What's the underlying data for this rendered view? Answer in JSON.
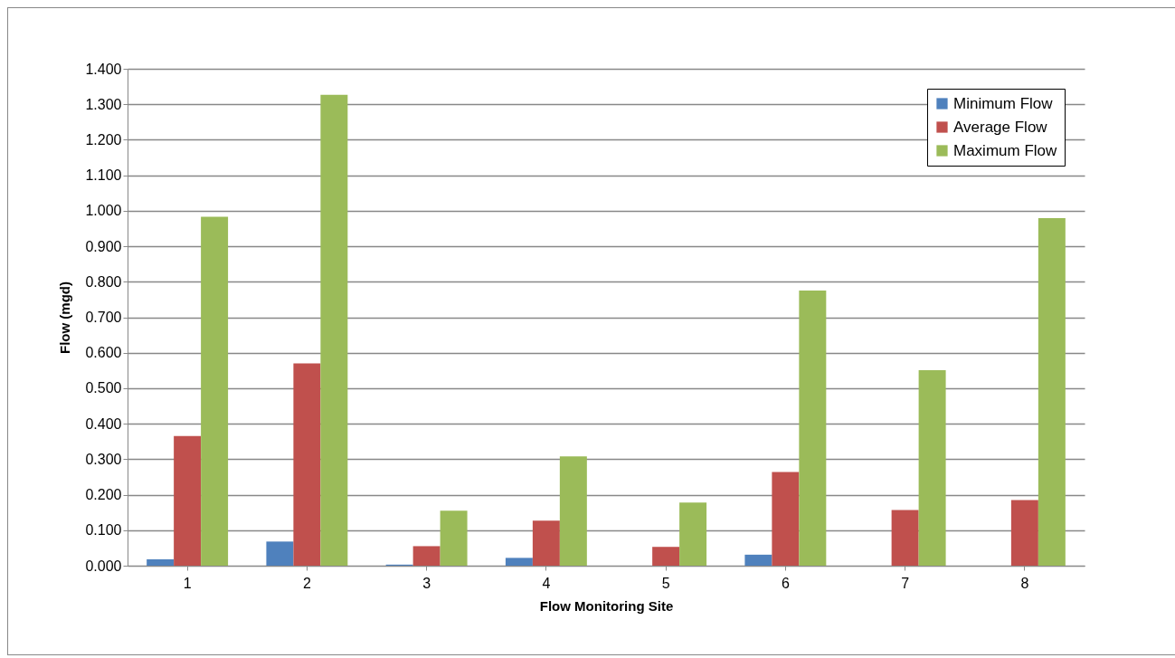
{
  "chart_data": {
    "type": "bar",
    "xlabel": "Flow Monitoring Site",
    "ylabel": "Flow (mgd)",
    "categories": [
      "1",
      "2",
      "3",
      "4",
      "5",
      "6",
      "7",
      "8"
    ],
    "series": [
      {
        "name": "Minimum Flow",
        "color": "#4f81bd",
        "values": [
          0.018,
          0.068,
          0.003,
          0.022,
          0,
          0.031,
          0,
          0
        ]
      },
      {
        "name": "Average Flow",
        "color": "#c0504d",
        "values": [
          0.365,
          0.57,
          0.055,
          0.127,
          0.053,
          0.264,
          0.157,
          0.185
        ]
      },
      {
        "name": "Maximum Flow",
        "color": "#9bbb59",
        "values": [
          0.983,
          1.327,
          0.155,
          0.308,
          0.178,
          0.775,
          0.551,
          0.979
        ]
      }
    ],
    "ylim": [
      0,
      1.4
    ],
    "yticks": [
      {
        "value": 0,
        "label": "0.000"
      },
      {
        "value": 0.1,
        "label": "0.100"
      },
      {
        "value": 0.2,
        "label": "0.200"
      },
      {
        "value": 0.3,
        "label": "0.300"
      },
      {
        "value": 0.4,
        "label": "0.400"
      },
      {
        "value": 0.5,
        "label": "0.500"
      },
      {
        "value": 0.6,
        "label": "0.600"
      },
      {
        "value": 0.7,
        "label": "0.700"
      },
      {
        "value": 0.8,
        "label": "0.800"
      },
      {
        "value": 0.9,
        "label": "0.900"
      },
      {
        "value": 1.0,
        "label": "1.000"
      },
      {
        "value": 1.1,
        "label": "1.100"
      },
      {
        "value": 1.2,
        "label": "1.200"
      },
      {
        "value": 1.3,
        "label": "1.300"
      },
      {
        "value": 1.4,
        "label": "1.400"
      }
    ],
    "grid": "y",
    "legend": "top right"
  }
}
